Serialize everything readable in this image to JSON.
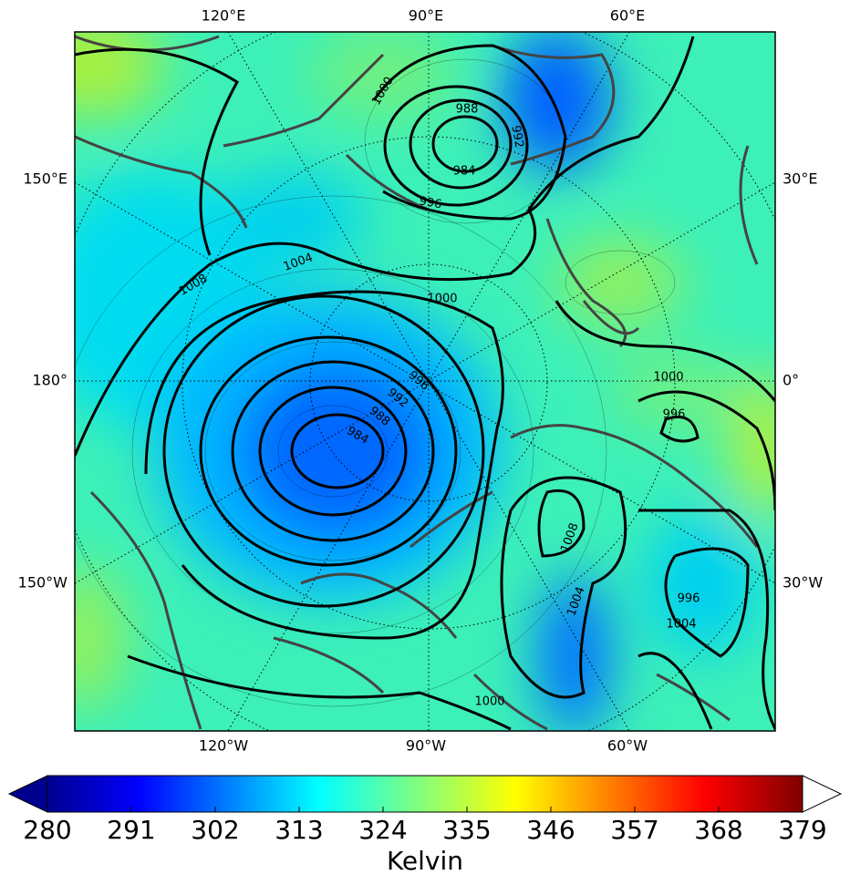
{
  "map": {
    "top_labels": [
      "120°E",
      "90°E",
      "60°E"
    ],
    "bottom_labels": [
      "120°W",
      "90°W",
      "60°W"
    ],
    "left_labels": [
      "150°E",
      "180°",
      "150°W"
    ],
    "right_labels": [
      "30°E",
      "0°",
      "30°W"
    ],
    "contour_labels": [
      "1000",
      "988",
      "992",
      "984",
      "996",
      "1004",
      "1008",
      "1000",
      "996",
      "992",
      "988",
      "984",
      "1000",
      "996",
      "1008",
      "1004",
      "996",
      "1004",
      "1000"
    ]
  },
  "colorbar": {
    "lim": [
      280,
      379
    ],
    "ticks": [
      280,
      291,
      302,
      313,
      324,
      335,
      346,
      357,
      368,
      379
    ],
    "label": "Kelvin"
  }
}
